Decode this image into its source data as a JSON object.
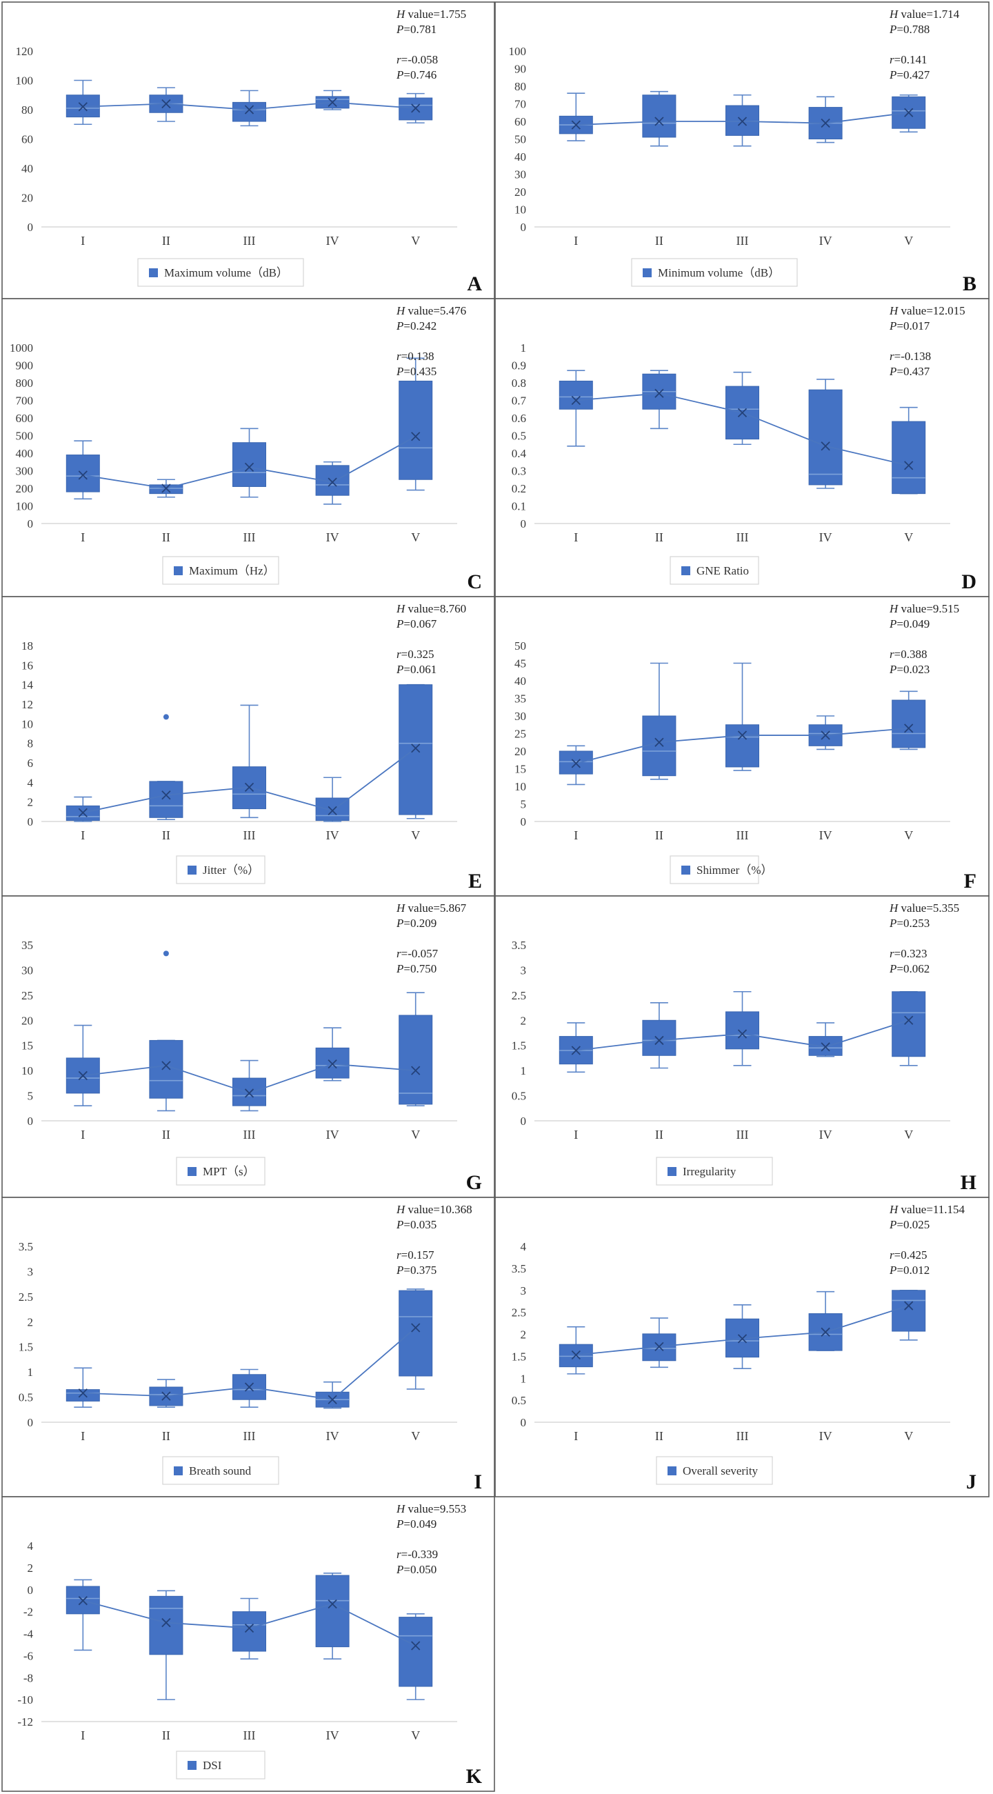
{
  "colors": {
    "box_fill": "#4472c4",
    "box_stroke": "#3a66b0",
    "whisker": "#5b85c8",
    "median": "#7ea3da",
    "mean_line": "#4a76c0",
    "mean_marker": "#24427a",
    "outlier": "#4472c4",
    "legend_swatch": "#4472c4"
  },
  "chart_data": [
    {
      "panel": "A",
      "type": "box",
      "categories": [
        "I",
        "II",
        "III",
        "IV",
        "V"
      ],
      "legend": "Maximum  volume（dB）",
      "ylim": [
        0,
        120
      ],
      "ytick_step": 20,
      "ytick_decimals": 0,
      "stats": {
        "H_label": "H",
        "H_text": " value=1.755",
        "P1_label": "P",
        "P1_text": "=0.781",
        "r_label": "r",
        "r_text": "=-0.058",
        "P2_label": "P",
        "P2_text": "=0.746"
      },
      "boxes": [
        {
          "min": 70,
          "q1": 75,
          "median": 81,
          "q3": 90,
          "max": 100,
          "mean": 82,
          "outliers": []
        },
        {
          "min": 72,
          "q1": 78,
          "median": 84,
          "q3": 90,
          "max": 95,
          "mean": 84,
          "outliers": []
        },
        {
          "min": 69,
          "q1": 72,
          "median": 80,
          "q3": 85,
          "max": 93,
          "mean": 80,
          "outliers": []
        },
        {
          "min": 80,
          "q1": 81,
          "median": 87,
          "q3": 89,
          "max": 93,
          "mean": 85,
          "outliers": []
        },
        {
          "min": 71,
          "q1": 73,
          "median": 83,
          "q3": 88,
          "max": 91,
          "mean": 81,
          "outliers": []
        }
      ]
    },
    {
      "panel": "B",
      "type": "box",
      "categories": [
        "I",
        "II",
        "III",
        "IV",
        "V"
      ],
      "legend": "Minimum  volume（dB）",
      "ylim": [
        0,
        100
      ],
      "ytick_step": 10,
      "ytick_decimals": 0,
      "stats": {
        "H_label": "H",
        "H_text": " value=1.714",
        "P1_label": "P",
        "P1_text": "=0.788",
        "r_label": "r",
        "r_text": "=0.141",
        "P2_label": "P",
        "P2_text": "=0.427"
      },
      "boxes": [
        {
          "min": 49,
          "q1": 53,
          "median": 58,
          "q3": 63,
          "max": 76,
          "mean": 58,
          "outliers": []
        },
        {
          "min": 46,
          "q1": 51,
          "median": 59,
          "q3": 75,
          "max": 77,
          "mean": 60,
          "outliers": []
        },
        {
          "min": 46,
          "q1": 52,
          "median": 60,
          "q3": 69,
          "max": 75,
          "mean": 60,
          "outliers": []
        },
        {
          "min": 48,
          "q1": 50,
          "median": 59,
          "q3": 68,
          "max": 74,
          "mean": 59,
          "outliers": []
        },
        {
          "min": 54,
          "q1": 56,
          "median": 66,
          "q3": 74,
          "max": 75,
          "mean": 65,
          "outliers": []
        }
      ]
    },
    {
      "panel": "C",
      "type": "box",
      "categories": [
        "I",
        "II",
        "III",
        "IV",
        "V"
      ],
      "legend": "Maximum（Hz）",
      "ylim": [
        0,
        1000
      ],
      "ytick_step": 100,
      "ytick_decimals": 0,
      "stats": {
        "H_label": "H",
        "H_text": " value=5.476",
        "P1_label": "P",
        "P1_text": "=0.242",
        "r_label": "r",
        "r_text": "=0.138",
        "P2_label": "P",
        "P2_text": "=0.435"
      },
      "boxes": [
        {
          "min": 140,
          "q1": 180,
          "median": 270,
          "q3": 390,
          "max": 470,
          "mean": 275,
          "outliers": []
        },
        {
          "min": 150,
          "q1": 170,
          "median": 200,
          "q3": 220,
          "max": 250,
          "mean": 200,
          "outliers": []
        },
        {
          "min": 150,
          "q1": 210,
          "median": 290,
          "q3": 460,
          "max": 540,
          "mean": 320,
          "outliers": []
        },
        {
          "min": 110,
          "q1": 160,
          "median": 220,
          "q3": 330,
          "max": 350,
          "mean": 235,
          "outliers": []
        },
        {
          "min": 190,
          "q1": 250,
          "median": 430,
          "q3": 810,
          "max": 940,
          "mean": 495,
          "outliers": []
        }
      ]
    },
    {
      "panel": "D",
      "type": "box",
      "categories": [
        "I",
        "II",
        "III",
        "IV",
        "V"
      ],
      "legend": "GNE Ratio",
      "ylim": [
        0,
        1
      ],
      "ytick_step": 0.1,
      "ytick_decimals": 1,
      "stats": {
        "H_label": "H",
        "H_text": " value=12.015",
        "P1_label": "P",
        "P1_text": "=0.017",
        "r_label": "r",
        "r_text": "=-0.138",
        "P2_label": "P",
        "P2_text": "=0.437"
      },
      "boxes": [
        {
          "min": 0.44,
          "q1": 0.65,
          "median": 0.72,
          "q3": 0.81,
          "max": 0.87,
          "mean": 0.7,
          "outliers": []
        },
        {
          "min": 0.54,
          "q1": 0.65,
          "median": 0.75,
          "q3": 0.85,
          "max": 0.87,
          "mean": 0.74,
          "outliers": []
        },
        {
          "min": 0.45,
          "q1": 0.48,
          "median": 0.65,
          "q3": 0.78,
          "max": 0.86,
          "mean": 0.63,
          "outliers": []
        },
        {
          "min": 0.2,
          "q1": 0.22,
          "median": 0.28,
          "q3": 0.76,
          "max": 0.82,
          "mean": 0.44,
          "outliers": []
        },
        {
          "min": 0.17,
          "q1": 0.17,
          "median": 0.26,
          "q3": 0.58,
          "max": 0.66,
          "mean": 0.33,
          "outliers": []
        }
      ]
    },
    {
      "panel": "E",
      "type": "box",
      "categories": [
        "I",
        "II",
        "III",
        "IV",
        "V"
      ],
      "legend": "Jitter（%）",
      "ylim": [
        0,
        18
      ],
      "ytick_step": 2,
      "ytick_decimals": 0,
      "stats": {
        "H_label": "H",
        "H_text": " value=8.760",
        "P1_label": "P",
        "P1_text": "=0.067",
        "r_label": "r",
        "r_text": "=0.325",
        "P2_label": "P",
        "P2_text": "=0.061"
      },
      "boxes": [
        {
          "min": 0,
          "q1": 0.1,
          "median": 0.5,
          "q3": 1.6,
          "max": 2.5,
          "mean": 0.9,
          "outliers": []
        },
        {
          "min": 0.2,
          "q1": 0.4,
          "median": 1.6,
          "q3": 4.1,
          "max": 4.1,
          "mean": 2.7,
          "outliers": [
            10.7
          ]
        },
        {
          "min": 0.4,
          "q1": 1.3,
          "median": 2.8,
          "q3": 5.6,
          "max": 11.9,
          "mean": 3.5,
          "outliers": []
        },
        {
          "min": 0,
          "q1": 0.1,
          "median": 0.6,
          "q3": 2.4,
          "max": 4.5,
          "mean": 1.1,
          "outliers": []
        },
        {
          "min": 0.3,
          "q1": 0.7,
          "median": 8.0,
          "q3": 14.0,
          "max": 14.0,
          "mean": 7.5,
          "outliers": []
        }
      ]
    },
    {
      "panel": "F",
      "type": "box",
      "categories": [
        "I",
        "II",
        "III",
        "IV",
        "V"
      ],
      "legend": "Shimmer（%）",
      "ylim": [
        0,
        50
      ],
      "ytick_step": 5,
      "ytick_decimals": 0,
      "stats": {
        "H_label": "H",
        "H_text": " value=9.515",
        "P1_label": "P",
        "P1_text": "=0.049",
        "r_label": "r",
        "r_text": "=0.388",
        "P2_label": "P",
        "P2_text": "=0.023"
      },
      "boxes": [
        {
          "min": 10.5,
          "q1": 13.5,
          "median": 17,
          "q3": 20,
          "max": 21.5,
          "mean": 16.5,
          "outliers": []
        },
        {
          "min": 12,
          "q1": 13,
          "median": 20,
          "q3": 30,
          "max": 45,
          "mean": 22.5,
          "outliers": []
        },
        {
          "min": 14.5,
          "q1": 15.5,
          "median": 24,
          "q3": 27.5,
          "max": 45,
          "mean": 24.5,
          "outliers": []
        },
        {
          "min": 20.5,
          "q1": 21.5,
          "median": 25,
          "q3": 27.5,
          "max": 30,
          "mean": 24.5,
          "outliers": []
        },
        {
          "min": 20.5,
          "q1": 21,
          "median": 25,
          "q3": 34.5,
          "max": 37,
          "mean": 26.5,
          "outliers": []
        }
      ]
    },
    {
      "panel": "G",
      "type": "box",
      "categories": [
        "I",
        "II",
        "III",
        "IV",
        "V"
      ],
      "legend": "MPT（s）",
      "ylim": [
        0,
        35
      ],
      "ytick_step": 5,
      "ytick_decimals": 0,
      "stats": {
        "H_label": "H",
        "H_text": " value=5.867",
        "P1_label": "P",
        "P1_text": "=0.209",
        "r_label": "r",
        "r_text": "=-0.057",
        "P2_label": "P",
        "P2_text": "=0.750"
      },
      "boxes": [
        {
          "min": 3,
          "q1": 5.5,
          "median": 8.5,
          "q3": 12.5,
          "max": 19,
          "mean": 9,
          "outliers": []
        },
        {
          "min": 2,
          "q1": 4.5,
          "median": 8,
          "q3": 16,
          "max": 16,
          "mean": 11,
          "outliers": [
            33.3
          ]
        },
        {
          "min": 2,
          "q1": 3,
          "median": 5,
          "q3": 8.5,
          "max": 12,
          "mean": 5.5,
          "outliers": []
        },
        {
          "min": 8,
          "q1": 8.5,
          "median": 11,
          "q3": 14.5,
          "max": 18.5,
          "mean": 11.3,
          "outliers": []
        },
        {
          "min": 3,
          "q1": 3.3,
          "median": 5.5,
          "q3": 21,
          "max": 25.5,
          "mean": 10,
          "outliers": []
        }
      ]
    },
    {
      "panel": "H",
      "type": "box",
      "categories": [
        "I",
        "II",
        "III",
        "IV",
        "V"
      ],
      "legend": "Irregularity",
      "ylim": [
        0,
        3.5
      ],
      "ytick_step": 0.5,
      "ytick_decimals": 1,
      "stats": {
        "H_label": "H",
        "H_text": " value=5.355",
        "P1_label": "P",
        "P1_text": "=0.253",
        "r_label": "r",
        "r_text": "=0.323",
        "P2_label": "P",
        "P2_text": "=0.062"
      },
      "boxes": [
        {
          "min": 0.97,
          "q1": 1.13,
          "median": 1.4,
          "q3": 1.68,
          "max": 1.95,
          "mean": 1.4,
          "outliers": []
        },
        {
          "min": 1.05,
          "q1": 1.3,
          "median": 1.6,
          "q3": 2.0,
          "max": 2.35,
          "mean": 1.6,
          "outliers": []
        },
        {
          "min": 1.1,
          "q1": 1.43,
          "median": 1.7,
          "q3": 2.17,
          "max": 2.57,
          "mean": 1.73,
          "outliers": []
        },
        {
          "min": 1.28,
          "q1": 1.3,
          "median": 1.45,
          "q3": 1.68,
          "max": 1.95,
          "mean": 1.47,
          "outliers": []
        },
        {
          "min": 1.1,
          "q1": 1.28,
          "median": 2.15,
          "q3": 2.57,
          "max": 2.57,
          "mean": 2.0,
          "outliers": []
        }
      ]
    },
    {
      "panel": "I",
      "type": "box",
      "categories": [
        "I",
        "II",
        "III",
        "IV",
        "V"
      ],
      "legend": "Breath sound",
      "ylim": [
        0,
        3.5
      ],
      "ytick_step": 0.5,
      "ytick_decimals": 1,
      "stats": {
        "H_label": "H",
        "H_text": " value=10.368",
        "P1_label": "P",
        "P1_text": "=0.035",
        "r_label": "r",
        "r_text": "=0.157",
        "P2_label": "P",
        "P2_text": "=0.375"
      },
      "boxes": [
        {
          "min": 0.3,
          "q1": 0.42,
          "median": 0.58,
          "q3": 0.65,
          "max": 1.08,
          "mean": 0.58,
          "outliers": []
        },
        {
          "min": 0.3,
          "q1": 0.33,
          "median": 0.55,
          "q3": 0.7,
          "max": 0.85,
          "mean": 0.52,
          "outliers": []
        },
        {
          "min": 0.3,
          "q1": 0.45,
          "median": 0.65,
          "q3": 0.95,
          "max": 1.05,
          "mean": 0.7,
          "outliers": []
        },
        {
          "min": 0.28,
          "q1": 0.3,
          "median": 0.45,
          "q3": 0.6,
          "max": 0.8,
          "mean": 0.45,
          "outliers": []
        },
        {
          "min": 0.66,
          "q1": 0.92,
          "median": 2.1,
          "q3": 2.62,
          "max": 2.65,
          "mean": 1.88,
          "outliers": []
        }
      ]
    },
    {
      "panel": "J",
      "type": "box",
      "categories": [
        "I",
        "II",
        "III",
        "IV",
        "V"
      ],
      "legend": "Overall severity",
      "ylim": [
        0,
        4
      ],
      "ytick_step": 0.5,
      "ytick_decimals": 1,
      "stats": {
        "H_label": "H",
        "H_text": " value=11.154",
        "P1_label": "P",
        "P1_text": "=0.025",
        "r_label": "r",
        "r_text": "=0.425",
        "P2_label": "P",
        "P2_text": "=0.012"
      },
      "boxes": [
        {
          "min": 1.1,
          "q1": 1.26,
          "median": 1.5,
          "q3": 1.77,
          "max": 2.17,
          "mean": 1.53,
          "outliers": []
        },
        {
          "min": 1.25,
          "q1": 1.4,
          "median": 1.68,
          "q3": 2.01,
          "max": 2.37,
          "mean": 1.72,
          "outliers": []
        },
        {
          "min": 1.22,
          "q1": 1.48,
          "median": 1.85,
          "q3": 2.35,
          "max": 2.67,
          "mean": 1.9,
          "outliers": []
        },
        {
          "min": 1.63,
          "q1": 1.63,
          "median": 2.0,
          "q3": 2.47,
          "max": 2.97,
          "mean": 2.05,
          "outliers": []
        },
        {
          "min": 1.87,
          "q1": 2.07,
          "median": 2.77,
          "q3": 3.0,
          "max": 3.0,
          "mean": 2.65,
          "outliers": []
        }
      ]
    },
    {
      "panel": "K",
      "type": "box",
      "categories": [
        "I",
        "II",
        "III",
        "IV",
        "V"
      ],
      "legend": "DSI",
      "ylim": [
        -12,
        4
      ],
      "ytick_step": 2,
      "ytick_decimals": 0,
      "stats": {
        "H_label": "H",
        "H_text": " value=9.553",
        "P1_label": "P",
        "P1_text": "=0.049",
        "r_label": "r",
        "r_text": "=-0.339",
        "P2_label": "P",
        "P2_text": "=0.050"
      },
      "boxes": [
        {
          "min": -5.5,
          "q1": -2.2,
          "median": -0.8,
          "q3": 0.3,
          "max": 0.9,
          "mean": -1.0,
          "outliers": []
        },
        {
          "min": -10,
          "q1": -5.9,
          "median": -1.7,
          "q3": -0.6,
          "max": -0.1,
          "mean": -3.0,
          "outliers": []
        },
        {
          "min": -6.3,
          "q1": -5.6,
          "median": -3.2,
          "q3": -2.0,
          "max": -0.8,
          "mean": -3.5,
          "outliers": []
        },
        {
          "min": -6.3,
          "q1": -5.2,
          "median": -1.0,
          "q3": 1.3,
          "max": 1.5,
          "mean": -1.3,
          "outliers": []
        },
        {
          "min": -10,
          "q1": -8.8,
          "median": -4.2,
          "q3": -2.5,
          "max": -2.2,
          "mean": -5.1,
          "outliers": []
        }
      ]
    }
  ]
}
